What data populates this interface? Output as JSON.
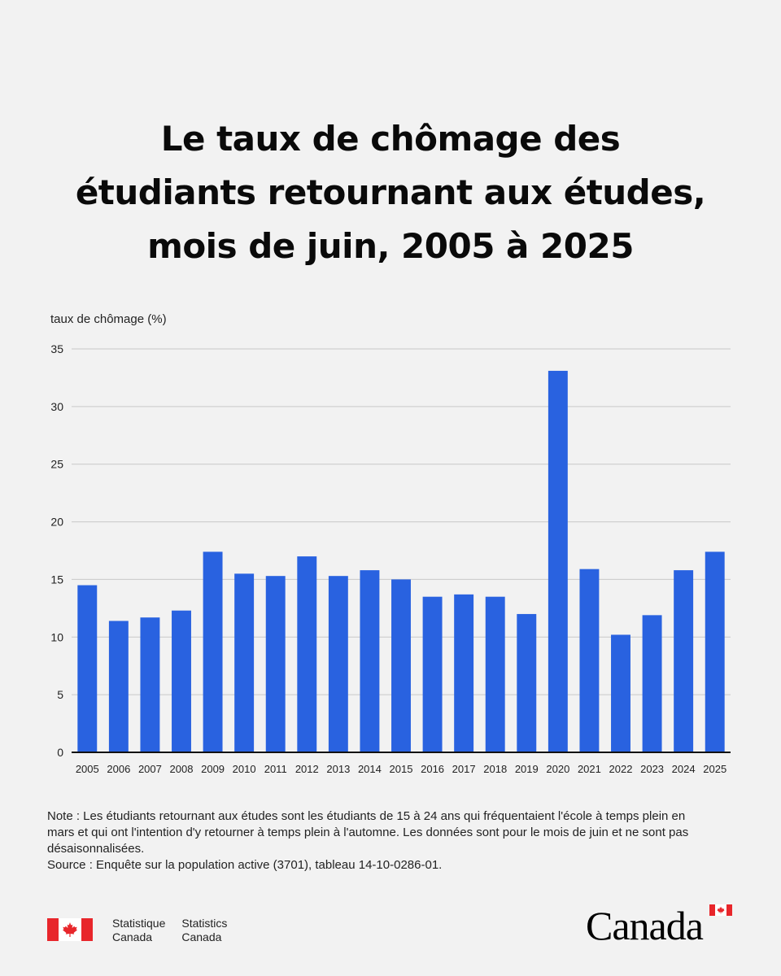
{
  "title_lines": [
    "Le taux de chômage des",
    "étudiants retournant aux études,",
    "mois de juin, 2005 à 2025"
  ],
  "chart_data": {
    "type": "bar",
    "title": "Le taux de chômage des étudiants retournant aux études, mois de juin, 2005 à 2025",
    "ylabel": "taux de chômage (%)",
    "xlabel": "",
    "ylim": [
      0,
      35
    ],
    "yticks": [
      0,
      5,
      10,
      15,
      20,
      25,
      30,
      35
    ],
    "grid": true,
    "bar_color": "#2962e0",
    "categories": [
      "2005",
      "2006",
      "2007",
      "2008",
      "2009",
      "2010",
      "2011",
      "2012",
      "2013",
      "2014",
      "2015",
      "2016",
      "2017",
      "2018",
      "2019",
      "2020",
      "2021",
      "2022",
      "2023",
      "2024",
      "2025"
    ],
    "values": [
      14.5,
      11.4,
      11.7,
      12.3,
      17.4,
      15.5,
      15.3,
      17.0,
      15.3,
      15.8,
      15.0,
      13.5,
      13.7,
      13.5,
      12.0,
      33.1,
      15.9,
      10.2,
      11.9,
      15.8,
      17.4
    ]
  },
  "notes": {
    "note": "Note : Les étudiants retournant aux études sont les étudiants de 15 à 24 ans qui fréquentaient l'école à temps plein en mars et qui ont l'intention d'y retourner à temps plein à l'automne. Les données sont pour le mois de juin et ne sont pas désaisonnalisées.",
    "source": "Source : Enquête sur la population active (3701), tableau 14-10-0286-01."
  },
  "footer": {
    "fr_line1": "Statistique",
    "fr_line2": "Canada",
    "en_line1": "Statistics",
    "en_line2": "Canada",
    "wordmark": "Canada",
    "flag_icon": "canada-flag-icon",
    "flag_red": "#e8262b"
  }
}
